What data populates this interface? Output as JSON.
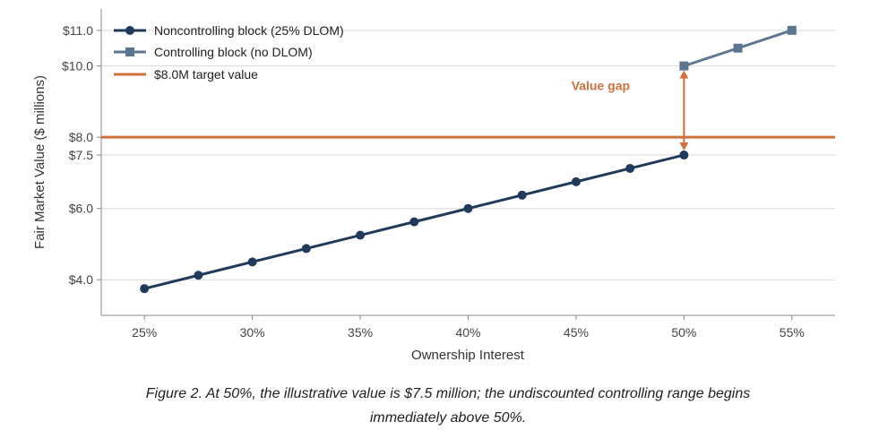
{
  "chart_data": {
    "type": "line",
    "xlabel": "Ownership Interest",
    "ylabel": "Fair Market Value ($ millions)",
    "xlim": [
      23,
      57
    ],
    "ylim": [
      3,
      11.6
    ],
    "x_ticks": [
      25,
      30,
      35,
      40,
      45,
      50,
      55
    ],
    "x_tick_labels": [
      "25%",
      "30%",
      "35%",
      "40%",
      "45%",
      "50%",
      "55%"
    ],
    "y_ticks": [
      4.0,
      6.0,
      7.5,
      8.0,
      10.0,
      11.0
    ],
    "y_tick_labels": [
      "$4.0",
      "$6.0",
      "$7.5",
      "$8.0",
      "$10.0",
      "$11.0"
    ],
    "grid": "horizontal",
    "legend_position": "top-left",
    "series": [
      {
        "name": "Noncontrolling block (25% DLOM)",
        "marker": "circle",
        "color": "#1f3a5a",
        "x": [
          25,
          27.5,
          30,
          32.5,
          35,
          37.5,
          40,
          42.5,
          45,
          47.5,
          50
        ],
        "y": [
          3.75,
          4.125,
          4.5,
          4.875,
          5.25,
          5.625,
          6.0,
          6.375,
          6.75,
          7.125,
          7.5
        ]
      },
      {
        "name": "Controlling block (no DLOM)",
        "marker": "square",
        "color": "#5c7691",
        "x": [
          50,
          52.5,
          55
        ],
        "y": [
          10.0,
          10.5,
          11.0
        ]
      }
    ],
    "reference_line": {
      "name": "$8.0M target value",
      "y": 8.0,
      "color": "#d0703a"
    },
    "annotation": {
      "text": "Value gap",
      "x": 50,
      "y_from": 7.5,
      "y_to": 10.0,
      "color": "#d0703a"
    }
  },
  "caption": {
    "line1": "Figure 2. At 50%, the illustrative value is $7.5 million; the undiscounted controlling range begins",
    "line2": "immediately above 50%."
  }
}
